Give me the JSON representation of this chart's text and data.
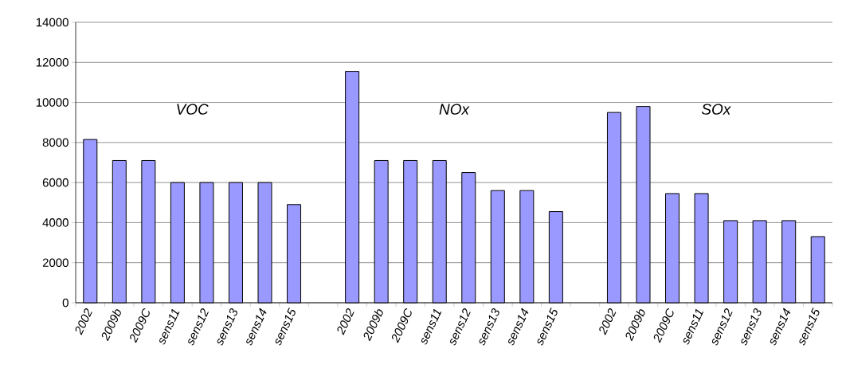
{
  "chart_data": {
    "type": "bar",
    "categories": [
      "2002",
      "2009b",
      "2009C",
      "sens11",
      "sens12",
      "sens13",
      "sens14",
      "sens15",
      null,
      "2002",
      "2009b",
      "2009C",
      "sens11",
      "sens12",
      "sens13",
      "sens14",
      "sens15",
      null,
      "2002",
      "2009b",
      "2009C",
      "sens11",
      "sens12",
      "sens13",
      "sens14",
      "sens15"
    ],
    "values": [
      8150,
      7100,
      7100,
      6000,
      6000,
      6000,
      6000,
      4900,
      null,
      11550,
      7100,
      7100,
      7100,
      6500,
      5600,
      5600,
      4550,
      null,
      9500,
      9800,
      5450,
      5450,
      4100,
      4100,
      4100,
      3300
    ],
    "color": "#9999ff",
    "ylim": [
      0,
      14000
    ],
    "yticks": [
      0,
      2000,
      4000,
      6000,
      8000,
      10000,
      12000,
      14000
    ],
    "grid": "y",
    "annotations": [
      "VOC",
      "NOx",
      "SOx"
    ]
  }
}
